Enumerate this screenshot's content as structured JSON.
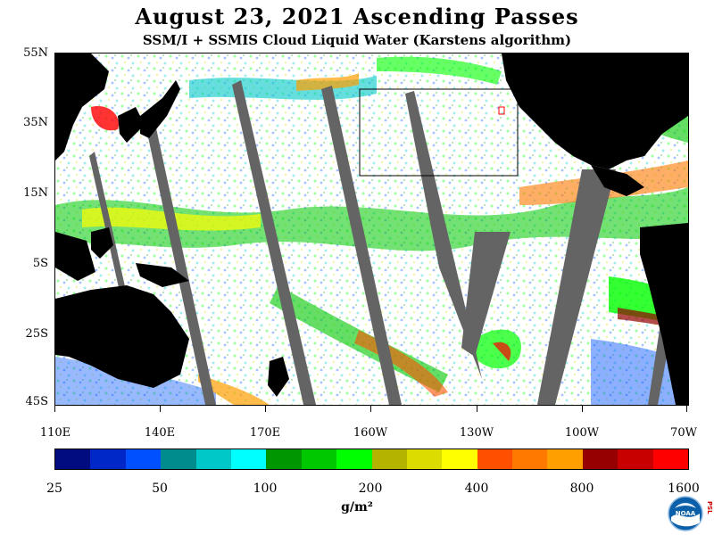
{
  "header": {
    "title": "August 23, 2021  Ascending Passes",
    "subtitle": "SSM/I + SSMIS Cloud Liquid Water (Karstens algorithm)"
  },
  "axes": {
    "lat_labels": [
      "55N",
      "35N",
      "15N",
      "5S",
      "25S",
      "45S"
    ],
    "lon_labels": [
      "110E",
      "140E",
      "170E",
      "160W",
      "130W",
      "100W",
      "70W"
    ]
  },
  "colorbar": {
    "colors": [
      "#000c80",
      "#0028c8",
      "#0050ff",
      "#008c8c",
      "#00c8c8",
      "#00ffff",
      "#009600",
      "#00c800",
      "#00ff00",
      "#b4b400",
      "#dcdc00",
      "#ffff00",
      "#ff5000",
      "#ff7800",
      "#ffa000",
      "#960000",
      "#c80000",
      "#ff0000"
    ],
    "labels": [
      "25",
      "50",
      "100",
      "200",
      "400",
      "800",
      "1600"
    ],
    "units": "g/m²"
  },
  "logo": {
    "text": "NOAA",
    "badge": "PSL"
  }
}
